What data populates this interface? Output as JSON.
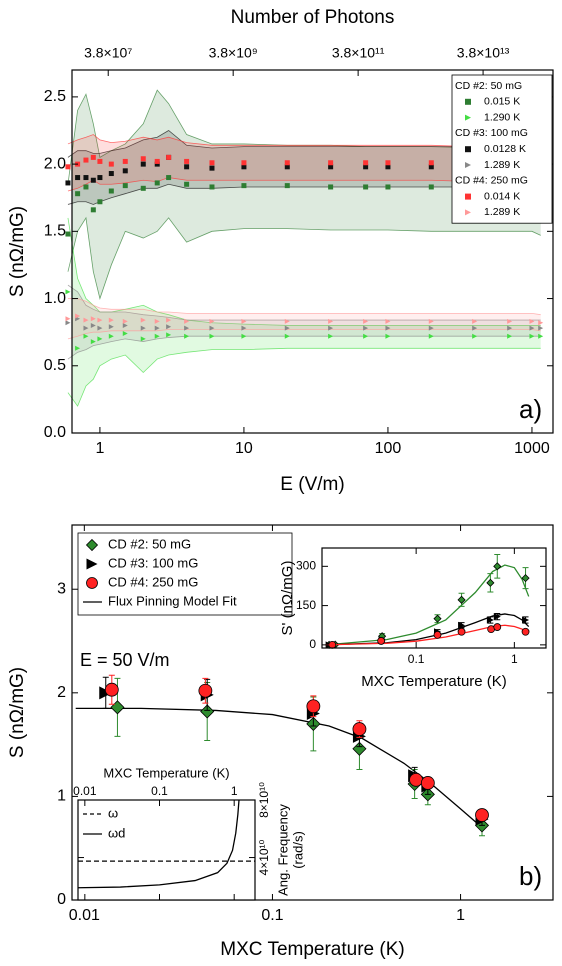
{
  "chart_data": [
    {
      "type": "scatter",
      "xlabel": "E (V/m)",
      "ylabel": "S (nΩ/mG)",
      "x2label": "Number of Photons",
      "panel_label": "a)",
      "xlog": true,
      "xlim": [
        0.64,
        1400
      ],
      "xticks": [
        1,
        10,
        100,
        1000
      ],
      "ylim": [
        0,
        2.7
      ],
      "yticks": [
        {
          "value": 0,
          "label": "0.0"
        },
        0.5,
        {
          "value": 1,
          "label": "1.0"
        },
        1.5,
        {
          "value": 2,
          "label": "2.0"
        },
        2.5
      ],
      "x2log": true,
      "x2lim": [
        10000000.0,
        500000000000000.0
      ],
      "x2ticks": [
        {
          "value": 38000000.0,
          "label": "3.8×10⁷"
        },
        {
          "value": 3800000000.0,
          "label": "3.8×10⁹"
        },
        {
          "value": 380000000000.0,
          "label": "3.8×10¹¹"
        },
        {
          "value": 38000000000000.0,
          "label": "3.8×10¹³"
        }
      ],
      "x": [
        0.6,
        0.7,
        0.8,
        0.9,
        1,
        1.2,
        1.5,
        2,
        2.5,
        3,
        4,
        6,
        10,
        20,
        40,
        70,
        100,
        200,
        400,
        700,
        1000,
        1150
      ],
      "groups": [
        {
          "name": "CD #2: 50 mG",
          "series": [
            {
              "name": "0.015 K",
              "color": "#2e7d32",
              "marker": "square",
              "values": [
                1.48,
                1.78,
                1.83,
                1.66,
                1.72,
                1.8,
                1.84,
                1.82,
                1.86,
                1.9,
                1.85,
                1.83,
                1.84,
                1.84,
                1.83,
                1.83,
                1.83,
                1.83,
                1.82,
                1.82,
                1.82,
                1.75
              ],
              "band_lower": [
                1.2,
                1.5,
                1.6,
                1.2,
                1.0,
                1.25,
                1.5,
                1.45,
                1.5,
                1.6,
                1.42,
                1.5,
                1.52,
                1.52,
                1.51,
                1.51,
                1.51,
                1.5,
                1.5,
                1.5,
                1.5,
                1.47
              ],
              "band_upper": [
                1.85,
                2.4,
                2.52,
                2.3,
                2.05,
                2.1,
                2.15,
                2.3,
                2.55,
                2.45,
                2.22,
                2.15,
                2.15,
                2.14,
                2.14,
                2.13,
                2.13,
                2.13,
                2.12,
                2.12,
                2.12,
                2.06
              ]
            },
            {
              "name": "1.290 K",
              "color": "#44dd44",
              "marker": "triangle",
              "values": [
                1.05,
                0.63,
                0.72,
                0.68,
                0.7,
                0.72,
                0.74,
                0.7,
                0.72,
                0.73,
                0.72,
                0.72,
                0.72,
                0.72,
                0.72,
                0.72,
                0.72,
                0.72,
                0.72,
                0.72,
                0.72,
                0.72
              ],
              "band_lower": [
                0.3,
                0.2,
                0.35,
                0.4,
                0.5,
                0.55,
                0.58,
                0.45,
                0.55,
                0.58,
                0.6,
                0.62,
                0.62,
                0.63,
                0.63,
                0.63,
                0.63,
                0.63,
                0.63,
                0.63,
                0.63,
                0.63
              ],
              "band_upper": [
                1.6,
                1.15,
                1.0,
                0.95,
                0.9,
                0.9,
                0.92,
                0.95,
                0.9,
                0.88,
                0.84,
                0.82,
                0.81,
                0.8,
                0.8,
                0.8,
                0.8,
                0.8,
                0.8,
                0.8,
                0.8,
                0.8
              ]
            }
          ]
        },
        {
          "name": "CD #3: 100 mG",
          "series": [
            {
              "name": "0.0128 K",
              "color": "#111111",
              "marker": "square",
              "values": [
                1.86,
                1.9,
                1.9,
                1.88,
                1.9,
                1.93,
                1.95,
                2.0,
                2.0,
                2.05,
                1.98,
                1.97,
                1.98,
                1.98,
                1.98,
                1.98,
                1.98,
                1.98,
                1.98,
                1.98,
                1.97,
                1.95
              ],
              "band_lower": [
                1.7,
                1.72,
                1.72,
                1.7,
                1.72,
                1.75,
                1.78,
                1.82,
                1.82,
                1.85,
                1.82,
                1.82,
                1.83,
                1.83,
                1.83,
                1.83,
                1.83,
                1.83,
                1.83,
                1.83,
                1.82,
                1.8
              ],
              "band_upper": [
                2.05,
                2.1,
                2.1,
                2.08,
                2.08,
                2.1,
                2.12,
                2.18,
                2.2,
                2.25,
                2.14,
                2.12,
                2.13,
                2.13,
                2.13,
                2.13,
                2.13,
                2.13,
                2.13,
                2.13,
                2.12,
                2.1
              ]
            },
            {
              "name": "1.289 K",
              "color": "#888888",
              "marker": "triangle",
              "values": [
                0.82,
                0.85,
                0.78,
                0.8,
                0.78,
                0.79,
                0.8,
                0.78,
                0.78,
                0.79,
                0.78,
                0.78,
                0.78,
                0.78,
                0.78,
                0.78,
                0.78,
                0.78,
                0.78,
                0.78,
                0.78,
                0.78
              ],
              "band_lower": [
                0.55,
                0.6,
                0.62,
                0.65,
                0.66,
                0.68,
                0.7,
                0.68,
                0.7,
                0.71,
                0.72,
                0.72,
                0.72,
                0.72,
                0.72,
                0.72,
                0.72,
                0.72,
                0.72,
                0.72,
                0.72,
                0.72
              ],
              "band_upper": [
                1.1,
                1.05,
                0.95,
                0.92,
                0.9,
                0.9,
                0.9,
                0.88,
                0.87,
                0.86,
                0.84,
                0.84,
                0.84,
                0.84,
                0.84,
                0.84,
                0.84,
                0.84,
                0.84,
                0.84,
                0.84,
                0.84
              ]
            }
          ]
        },
        {
          "name": "CD #4: 250 mG",
          "series": [
            {
              "name": "0.014 K",
              "color": "#ff3333",
              "marker": "square",
              "values": [
                1.98,
                2.0,
                2.03,
                2.05,
                2.02,
                2.0,
                2.02,
                2.04,
                2.02,
                2.05,
                2.02,
                2.01,
                2.01,
                2.01,
                2.01,
                2.01,
                2.01,
                2.01,
                2.0,
                2.0,
                1.99,
                1.95
              ],
              "band_lower": [
                1.8,
                1.82,
                1.85,
                1.88,
                1.85,
                1.85,
                1.86,
                1.88,
                1.87,
                1.9,
                1.88,
                1.88,
                1.88,
                1.88,
                1.88,
                1.88,
                1.88,
                1.88,
                1.87,
                1.87,
                1.86,
                1.82
              ],
              "band_upper": [
                2.15,
                2.18,
                2.2,
                2.22,
                2.18,
                2.16,
                2.17,
                2.2,
                2.18,
                2.2,
                2.16,
                2.14,
                2.14,
                2.14,
                2.14,
                2.14,
                2.14,
                2.14,
                2.13,
                2.13,
                2.12,
                2.08
              ]
            },
            {
              "name": "1.289 K",
              "color": "#ff9999",
              "marker": "triangle",
              "values": [
                0.85,
                0.87,
                0.84,
                0.85,
                0.84,
                0.84,
                0.83,
                0.84,
                0.83,
                0.84,
                0.83,
                0.83,
                0.83,
                0.83,
                0.83,
                0.83,
                0.83,
                0.83,
                0.83,
                0.83,
                0.83,
                0.82
              ],
              "band_lower": [
                0.7,
                0.72,
                0.74,
                0.75,
                0.75,
                0.76,
                0.76,
                0.76,
                0.76,
                0.77,
                0.77,
                0.77,
                0.77,
                0.77,
                0.77,
                0.77,
                0.77,
                0.77,
                0.77,
                0.77,
                0.77,
                0.76
              ],
              "band_upper": [
                1.0,
                1.0,
                0.98,
                0.95,
                0.93,
                0.92,
                0.92,
                0.92,
                0.9,
                0.9,
                0.89,
                0.89,
                0.89,
                0.89,
                0.89,
                0.89,
                0.89,
                0.89,
                0.89,
                0.89,
                0.89,
                0.88
              ]
            }
          ]
        }
      ]
    },
    {
      "type": "scatter",
      "xlabel": "MXC Temperature (K)",
      "ylabel": "S (nΩ/mG)",
      "panel_label": "b)",
      "annotation": "E = 50 V/m",
      "xlog": true,
      "xlim": [
        0.0086,
        3.1
      ],
      "xticks": [
        0.01,
        0.1,
        1
      ],
      "ylim": [
        0,
        3.62
      ],
      "yticks": [
        0,
        1,
        2,
        3
      ],
      "series": [
        {
          "name": "CD #2: 50 mG",
          "color": "#2e8b2e",
          "marker": "diamond",
          "x": [
            0.015,
            0.045,
            0.165,
            0.29,
            0.57,
            0.67,
            1.3
          ],
          "values": [
            1.86,
            1.82,
            1.7,
            1.46,
            1.12,
            1.02,
            0.72
          ],
          "errors": [
            0.28,
            0.28,
            0.26,
            0.2,
            0.14,
            0.1,
            0.1
          ]
        },
        {
          "name": "CD #3: 100 mG",
          "color": "#000000",
          "marker": "triangle",
          "x": [
            0.013,
            0.045,
            0.165,
            0.29,
            0.57,
            0.67,
            1.3
          ],
          "values": [
            2.0,
            1.98,
            1.8,
            1.58,
            1.2,
            1.1,
            0.78
          ],
          "errors": [
            0.15,
            0.15,
            0.12,
            0.1,
            0.08,
            0.08,
            0.06
          ]
        },
        {
          "name": "CD #4: 250 mG",
          "color": "#ff2222",
          "marker": "circle",
          "x": [
            0.014,
            0.044,
            0.165,
            0.29,
            0.58,
            0.67,
            1.3
          ],
          "values": [
            2.03,
            2.02,
            1.87,
            1.65,
            1.16,
            1.13,
            0.82
          ],
          "errors": [
            0.14,
            0.12,
            0.1,
            0.08,
            0.06,
            0.05,
            0.05
          ]
        }
      ],
      "fit": {
        "name": "Flux Pinning Model Fit",
        "color": "#000000",
        "x": [
          0.009,
          0.02,
          0.05,
          0.1,
          0.2,
          0.3,
          0.5,
          0.7,
          1.0,
          1.3
        ],
        "values": [
          1.85,
          1.85,
          1.83,
          1.79,
          1.68,
          1.56,
          1.32,
          1.12,
          0.88,
          0.7
        ]
      }
    },
    {
      "type": "scatter",
      "xlabel": "MXC Temperature (K)",
      "ylabel": "S' (nΩ/mG)",
      "xlog": true,
      "xlim": [
        0.011,
        2.1
      ],
      "xticks": [
        0.1,
        1
      ],
      "ylim": [
        -12,
        370
      ],
      "yticks": [
        0,
        150,
        300
      ],
      "series": [
        {
          "color": "#2e8b2e",
          "marker": "diamond",
          "x": [
            0.013,
            0.015,
            0.045,
            0.165,
            0.29,
            0.57,
            0.67,
            1.3
          ],
          "values": [
            0,
            1,
            33,
            100,
            172,
            237,
            300,
            255
          ],
          "errors": [
            3,
            3,
            10,
            15,
            25,
            35,
            45,
            40
          ],
          "fit_x": [
            0.012,
            0.05,
            0.1,
            0.2,
            0.4,
            0.6,
            0.8,
            1.0,
            1.2,
            1.4
          ],
          "fit_values": [
            0,
            20,
            45,
            95,
            200,
            280,
            305,
            295,
            250,
            185
          ]
        },
        {
          "color": "#000000",
          "marker": "triangle",
          "x": [
            0.013,
            0.045,
            0.165,
            0.29,
            0.57,
            0.67,
            1.3
          ],
          "values": [
            0,
            18,
            50,
            75,
            95,
            108,
            95
          ],
          "errors": [
            2,
            4,
            8,
            10,
            12,
            12,
            12
          ],
          "fit_x": [
            0.012,
            0.05,
            0.1,
            0.2,
            0.4,
            0.6,
            0.8,
            1.0,
            1.2,
            1.4
          ],
          "fit_values": [
            0,
            8,
            20,
            45,
            85,
            110,
            118,
            112,
            95,
            70
          ]
        },
        {
          "color": "#ff2222",
          "marker": "circle",
          "x": [
            0.014,
            0.044,
            0.165,
            0.29,
            0.58,
            0.67,
            1.3
          ],
          "values": [
            0,
            15,
            38,
            50,
            60,
            68,
            50
          ],
          "errors": [
            2,
            3,
            5,
            6,
            7,
            6,
            6
          ],
          "fit_x": [
            0.012,
            0.05,
            0.1,
            0.2,
            0.4,
            0.6,
            0.8,
            1.0,
            1.2,
            1.4
          ],
          "fit_values": [
            0,
            6,
            14,
            30,
            55,
            70,
            75,
            70,
            60,
            45
          ]
        }
      ]
    },
    {
      "type": "line",
      "xlabel": "MXC Temperature (K)",
      "ylabel": [
        "Ang. Frequency",
        "(rad/s)"
      ],
      "xaxis": "top",
      "yaxis": "right",
      "xlog": true,
      "xlim": [
        0.0081,
        1.9
      ],
      "xticks": [
        0.01,
        0.1,
        1
      ],
      "ylim": [
        10500000000.0,
        80000000000.0
      ],
      "yticks": [
        {
          "value": 40000000000.0,
          "label": "4×10¹⁰"
        },
        {
          "value": 80000000000.0,
          "label": "8×10¹⁰"
        }
      ],
      "series": [
        {
          "name": "ω",
          "color": "#000000",
          "dash": true,
          "x": [
            0.0081,
            1.9
          ],
          "values": [
            37500000000.0,
            37500000000.0
          ]
        },
        {
          "name": "ωd",
          "color": "#000000",
          "dash": false,
          "x": [
            0.0081,
            0.03,
            0.1,
            0.3,
            0.6,
            0.8,
            0.95,
            1.05,
            1.12,
            1.16
          ],
          "values": [
            19000000000.0,
            19500000000.0,
            21000000000.0,
            24000000000.0,
            29500000000.0,
            36000000000.0,
            45000000000.0,
            57000000000.0,
            70000000000.0,
            80000000000.0
          ]
        }
      ]
    }
  ]
}
